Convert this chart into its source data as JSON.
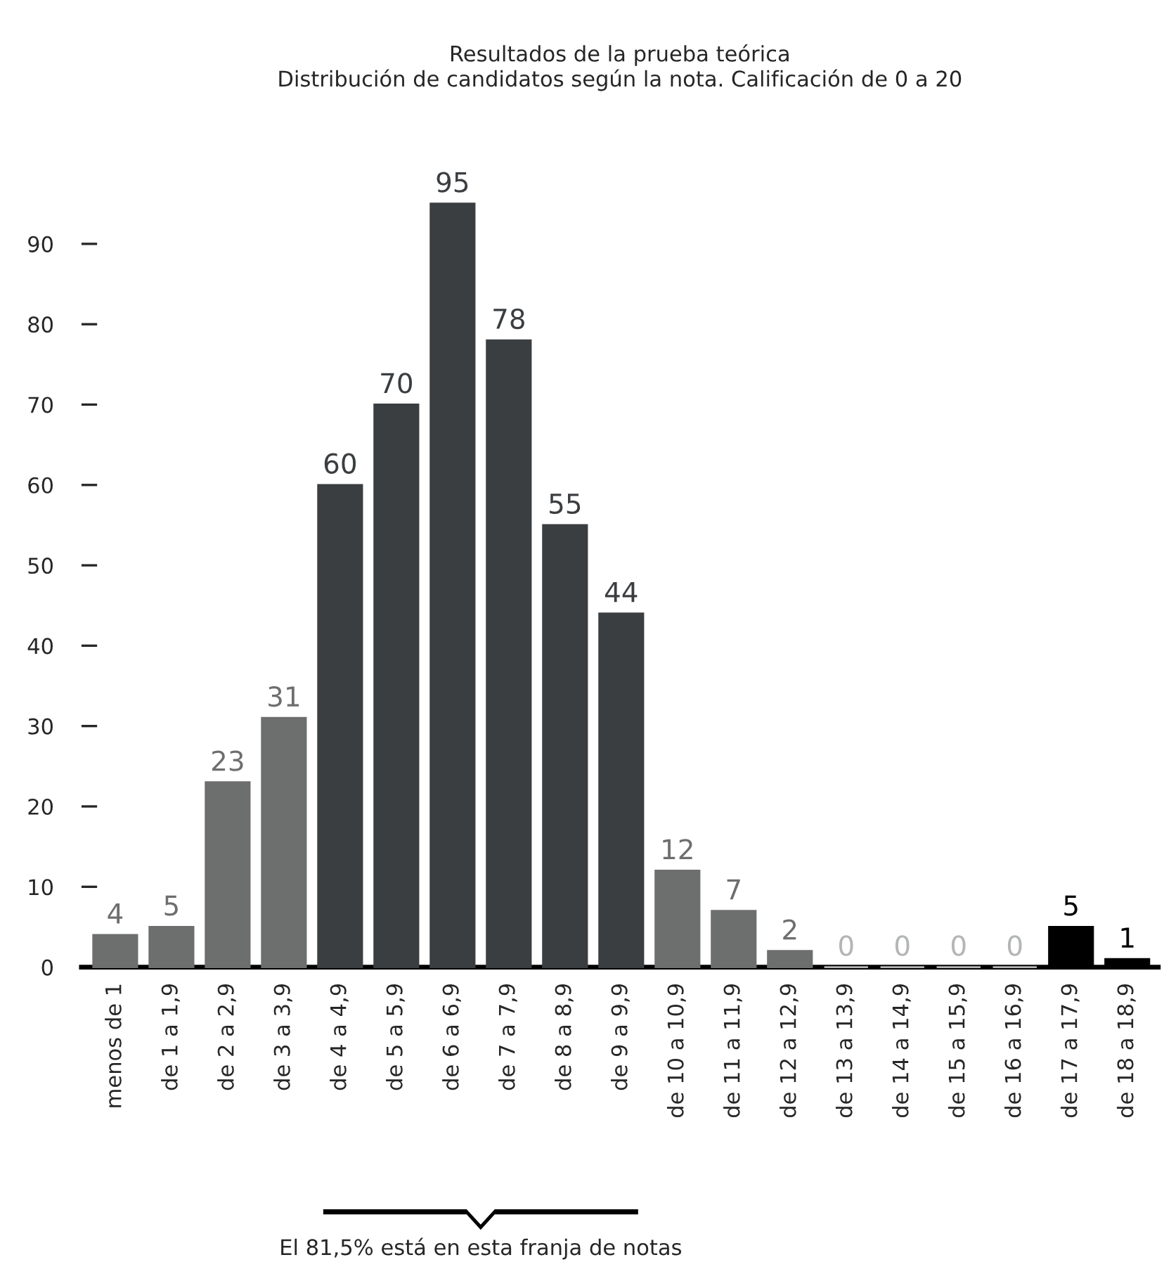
{
  "chart_data": {
    "type": "bar",
    "title": "Resultados de la prueba teórica\nDistribución de candidatos según la nota. Calificación de 0 a 20",
    "categories": [
      "menos de 1",
      "de 1 a 1,9",
      "de 2 a 2,9",
      "de 3 a 3,9",
      "de 4 a 4,9",
      "de 5 a 5,9",
      "de 6 a 6,9",
      "de 7 a 7,9",
      "de 8 a 8,9",
      "de 9 a 9,9",
      "de 10 a 10,9",
      "de 11 a 11,9",
      "de 12 a 12,9",
      "de 13 a 13,9",
      "de 14 a 14,9",
      "de 15 a 15,9",
      "de 16 a 16,9",
      "de 17 a 17,9",
      "de 18 a 18,9"
    ],
    "values": [
      4,
      5,
      23,
      31,
      60,
      70,
      95,
      78,
      55,
      44,
      12,
      7,
      2,
      0,
      0,
      0,
      0,
      5,
      1
    ],
    "colors": [
      "#6d6e6e",
      "#6d6e6e",
      "#6d6e6e",
      "#6d6e6e",
      "#3b3e41",
      "#3b3e41",
      "#3b3e41",
      "#3b3e41",
      "#3b3e41",
      "#3b3e41",
      "#6d6e6e",
      "#6d6e6e",
      "#6d6e6e",
      "#b4b5b5",
      "#b4b5b5",
      "#b4b5b5",
      "#b4b5b5",
      "#000000",
      "#000000"
    ],
    "data_labels": true,
    "ylim": [
      0,
      95
    ],
    "yticks": [
      0,
      10,
      20,
      30,
      40,
      50,
      60,
      70,
      80,
      90
    ],
    "grid": false,
    "annotations": [
      "El 81,5% está en esta franja de notas"
    ]
  }
}
